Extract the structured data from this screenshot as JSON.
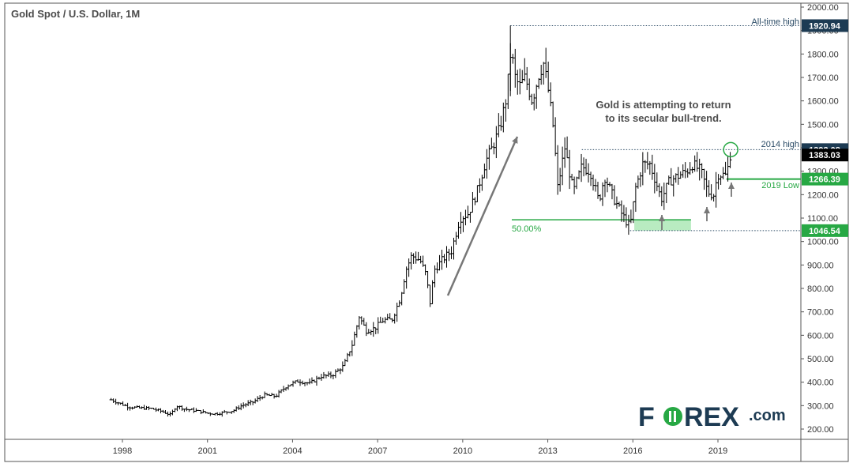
{
  "chart_data": {
    "type": "ohlc",
    "title": "Gold Spot / U.S. Dollar, 1M",
    "xlabel": "",
    "ylabel": "",
    "x_ticks": [
      "1998",
      "2001",
      "2004",
      "2007",
      "2010",
      "2013",
      "2016",
      "2019"
    ],
    "y_ticks": [
      "200.00",
      "300.00",
      "400.00",
      "500.00",
      "600.00",
      "700.00",
      "800.00",
      "900.00",
      "1000.00",
      "1100.00",
      "1200.00",
      "1300.00",
      "1400.00",
      "1500.00",
      "1600.00",
      "1700.00",
      "1800.00",
      "1900.00",
      "2000.00"
    ],
    "ylim": [
      150,
      2000
    ],
    "xlim": [
      1996.0,
      2022.3
    ],
    "grid": false,
    "series_color": "#000000",
    "price_path": [
      [
        1997.6,
        325
      ],
      [
        1997.9,
        310
      ],
      [
        1998.2,
        295
      ],
      [
        1998.6,
        290
      ],
      [
        1999.0,
        288
      ],
      [
        1999.4,
        275
      ],
      [
        1999.7,
        260
      ],
      [
        1999.9,
        300
      ],
      [
        2000.2,
        285
      ],
      [
        2000.6,
        278
      ],
      [
        2001.0,
        268
      ],
      [
        2001.3,
        265
      ],
      [
        2001.6,
        272
      ],
      [
        2001.9,
        278
      ],
      [
        2002.2,
        300
      ],
      [
        2002.6,
        315
      ],
      [
        2003.0,
        345
      ],
      [
        2003.4,
        340
      ],
      [
        2003.8,
        385
      ],
      [
        2004.2,
        405
      ],
      [
        2004.6,
        395
      ],
      [
        2005.0,
        425
      ],
      [
        2005.4,
        430
      ],
      [
        2005.8,
        470
      ],
      [
        2006.1,
        560
      ],
      [
        2006.35,
        680
      ],
      [
        2006.6,
        620
      ],
      [
        2006.9,
        630
      ],
      [
        2007.2,
        665
      ],
      [
        2007.5,
        665
      ],
      [
        2007.8,
        760
      ],
      [
        2008.0,
        880
      ],
      [
        2008.2,
        940
      ],
      [
        2008.5,
        920
      ],
      [
        2008.7,
        860
      ],
      [
        2008.85,
        740
      ],
      [
        2009.0,
        880
      ],
      [
        2009.3,
        925
      ],
      [
        2009.6,
        960
      ],
      [
        2009.9,
        1100
      ],
      [
        2010.2,
        1120
      ],
      [
        2010.5,
        1210
      ],
      [
        2010.8,
        1340
      ],
      [
        2011.0,
        1390
      ],
      [
        2011.3,
        1480
      ],
      [
        2011.55,
        1620
      ],
      [
        2011.7,
        1820
      ],
      [
        2011.85,
        1700
      ],
      [
        2012.0,
        1660
      ],
      [
        2012.2,
        1700
      ],
      [
        2012.45,
        1600
      ],
      [
        2012.7,
        1720
      ],
      [
        2012.85,
        1760
      ],
      [
        2013.0,
        1660
      ],
      [
        2013.2,
        1480
      ],
      [
        2013.35,
        1230
      ],
      [
        2013.6,
        1400
      ],
      [
        2013.9,
        1210
      ],
      [
        2014.2,
        1320
      ],
      [
        2014.5,
        1300
      ],
      [
        2014.8,
        1170
      ],
      [
        2015.0,
        1280
      ],
      [
        2015.3,
        1190
      ],
      [
        2015.6,
        1120
      ],
      [
        2015.9,
        1060
      ],
      [
        2016.1,
        1230
      ],
      [
        2016.35,
        1330
      ],
      [
        2016.6,
        1330
      ],
      [
        2016.8,
        1260
      ],
      [
        2017.0,
        1180
      ],
      [
        2017.3,
        1260
      ],
      [
        2017.6,
        1280
      ],
      [
        2017.9,
        1300
      ],
      [
        2018.1,
        1330
      ],
      [
        2018.4,
        1300
      ],
      [
        2018.65,
        1210
      ],
      [
        2018.85,
        1200
      ],
      [
        2019.0,
        1290
      ],
      [
        2019.3,
        1280
      ],
      [
        2019.45,
        1383
      ]
    ],
    "annotations": {
      "all_time_high": {
        "label": "All-time high",
        "value": 1920.94,
        "tag": "1920.94"
      },
      "high_2014": {
        "label": "2014 high",
        "value": 1392.08,
        "tag": "1392.08"
      },
      "current_price": {
        "value": 1383.03,
        "tag": "1383.03"
      },
      "low_2019": {
        "label": "2019 Low",
        "value": 1266.39,
        "tag": "1266.39"
      },
      "fib_50": {
        "label": "50.00%",
        "value": 1046.54,
        "tag": "1046.54"
      },
      "note": [
        "Gold is attempting to return",
        "to its secular bull-trend."
      ]
    }
  },
  "colors": {
    "bar": "#000000",
    "dotted_line": "#2b4b66",
    "tag_dark": "#1d3b53",
    "tag_black": "#000000",
    "green": "#27a844",
    "green_zone": "#9be3a6",
    "arrow": "#777777",
    "logo_dark": "#1d3b53",
    "logo_green": "#27a844"
  },
  "logo": {
    "text_fo": "F",
    "text_rex": "REX",
    "text_com": ".com",
    "o_letter": "O"
  }
}
